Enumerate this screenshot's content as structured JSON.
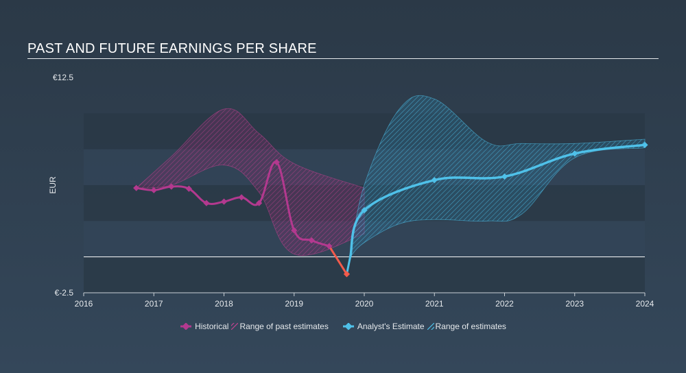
{
  "title": "PAST AND FUTURE EARNINGS PER SHARE",
  "colors": {
    "historical": "#b3398f",
    "historical_range": "#c0438f",
    "negative": "#f25b4c",
    "estimate": "#4fc1e9",
    "estimate_range": "#4fc1e9",
    "band_dark": "#2a3846",
    "band_light": "#34465a",
    "zero_line": "#ffffff",
    "text": "#e6e9ec"
  },
  "chart_data": {
    "type": "line",
    "title": "PAST AND FUTURE EARNINGS PER SHARE",
    "ylabel": "EUR",
    "xlabel": "",
    "xlim": [
      2016,
      2024
    ],
    "ylim": [
      -2.5,
      12.5
    ],
    "y_tick_labels": [
      {
        "value": 12.5,
        "label": "€12.5"
      },
      {
        "value": -2.5,
        "label": "€-2.5"
      }
    ],
    "x_ticks": [
      2016,
      2017,
      2018,
      2019,
      2020,
      2021,
      2022,
      2023,
      2024
    ],
    "legend_position": "bottom-center",
    "legend": [
      "Historical",
      "Range of past estimates",
      "Analyst's Estimate",
      "Range of estimates"
    ],
    "series": [
      {
        "name": "Historical",
        "x": [
          2016.75,
          2017.0,
          2017.25,
          2017.5,
          2017.75,
          2018.0,
          2018.25,
          2018.5,
          2018.75,
          2019.0,
          2019.25,
          2019.5,
          2019.75
        ],
        "values": [
          4.8,
          4.65,
          4.9,
          4.75,
          3.75,
          3.85,
          4.15,
          3.75,
          6.6,
          1.85,
          1.15,
          0.75,
          -1.2
        ]
      },
      {
        "name": "Analyst's Estimate",
        "x": [
          2019.8,
          2020.0,
          2021.0,
          2022.0,
          2023.0,
          2024.0
        ],
        "values": [
          0.0,
          3.25,
          5.35,
          5.6,
          7.2,
          7.8
        ]
      }
    ],
    "ranges": [
      {
        "name": "Range of past estimates",
        "x": [
          2016.75,
          2017.25,
          2018.0,
          2018.5,
          2019.0,
          2020.0
        ],
        "upper": [
          4.8,
          7.0,
          10.3,
          8.6,
          6.5,
          4.8
        ],
        "lower": [
          4.8,
          5.0,
          6.4,
          4.5,
          0.2,
          1.6
        ]
      },
      {
        "name": "Range of estimates",
        "x": [
          2019.8,
          2020.0,
          2020.5,
          2021.0,
          2021.75,
          2022.25,
          2023.0,
          2024.0
        ],
        "upper": [
          0.0,
          5.0,
          10.3,
          11.0,
          8.0,
          7.9,
          7.9,
          8.2
        ],
        "lower": [
          0.0,
          1.0,
          2.3,
          2.6,
          2.5,
          3.0,
          6.9,
          7.6
        ]
      }
    ]
  }
}
